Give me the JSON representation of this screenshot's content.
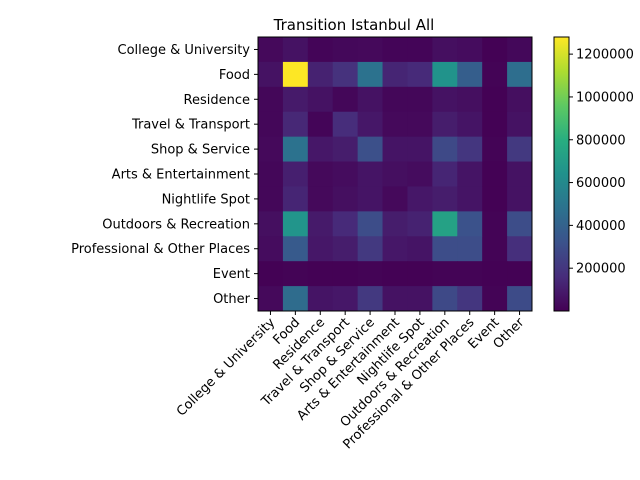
{
  "chart_data": {
    "type": "heatmap",
    "title": "Transition Istanbul All",
    "xlabel": "",
    "ylabel": "",
    "categories": [
      "College & University",
      "Food",
      "Residence",
      "Travel & Transport",
      "Shop & Service",
      "Arts & Entertainment",
      "Nightlife Spot",
      "Outdoors & Recreation",
      "Professional & Other Places",
      "Event",
      "Other"
    ],
    "matrix": [
      [
        30000,
        60000,
        15000,
        25000,
        30000,
        15000,
        15000,
        50000,
        40000,
        5000,
        25000
      ],
      [
        60000,
        1280000,
        120000,
        180000,
        480000,
        130000,
        150000,
        650000,
        380000,
        10000,
        460000
      ],
      [
        20000,
        90000,
        60000,
        20000,
        60000,
        20000,
        20000,
        60000,
        50000,
        5000,
        50000
      ],
      [
        20000,
        140000,
        15000,
        160000,
        80000,
        30000,
        30000,
        100000,
        70000,
        5000,
        60000
      ],
      [
        30000,
        480000,
        80000,
        100000,
        310000,
        70000,
        70000,
        280000,
        200000,
        10000,
        210000
      ],
      [
        20000,
        110000,
        30000,
        40000,
        70000,
        50000,
        40000,
        130000,
        70000,
        5000,
        60000
      ],
      [
        20000,
        130000,
        30000,
        50000,
        70000,
        30000,
        80000,
        100000,
        70000,
        5000,
        60000
      ],
      [
        50000,
        660000,
        90000,
        150000,
        300000,
        100000,
        120000,
        730000,
        320000,
        10000,
        300000
      ],
      [
        40000,
        360000,
        80000,
        100000,
        210000,
        80000,
        70000,
        300000,
        300000,
        10000,
        170000
      ],
      [
        5000,
        10000,
        5000,
        5000,
        10000,
        5000,
        5000,
        10000,
        10000,
        5000,
        5000
      ],
      [
        30000,
        450000,
        70000,
        80000,
        210000,
        60000,
        60000,
        280000,
        200000,
        10000,
        290000
      ]
    ],
    "colorbar": {
      "min": 0,
      "max": 1280000,
      "ticks": [
        200000,
        400000,
        600000,
        800000,
        1000000,
        1200000
      ],
      "tick_labels": [
        "200000",
        "400000",
        "600000",
        "800000",
        "1000000",
        "1200000"
      ],
      "colormap": "viridis"
    }
  }
}
